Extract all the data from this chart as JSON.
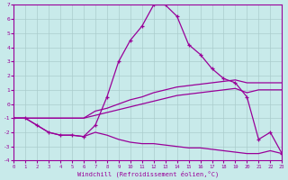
{
  "xlabel": "Windchill (Refroidissement éolien,°C)",
  "xlim": [
    0,
    23
  ],
  "ylim": [
    -4,
    7
  ],
  "xticks": [
    0,
    1,
    2,
    3,
    4,
    5,
    6,
    7,
    8,
    9,
    10,
    11,
    12,
    13,
    14,
    15,
    16,
    17,
    18,
    19,
    20,
    21,
    22,
    23
  ],
  "yticks": [
    -4,
    -3,
    -2,
    -1,
    0,
    1,
    2,
    3,
    4,
    5,
    6,
    7
  ],
  "bg_color": "#c8eaea",
  "line_color": "#990099",
  "grid_color": "#aacccc",
  "line_main_x": [
    0,
    1,
    2,
    3,
    4,
    5,
    6,
    7,
    8,
    9,
    10,
    11,
    12,
    13,
    14,
    15,
    16,
    17,
    18,
    19,
    20,
    21,
    22,
    23
  ],
  "line_main_y": [
    -1,
    -1,
    -1.5,
    -2,
    -2.2,
    -2.2,
    -2.3,
    -1.5,
    0.5,
    3.0,
    4.5,
    5.5,
    7.0,
    7.0,
    6.2,
    4.2,
    3.5,
    2.5,
    1.8,
    1.5,
    0.5,
    -2.5,
    -2.0,
    -3.5
  ],
  "line_upper_x": [
    0,
    1,
    2,
    3,
    4,
    5,
    6,
    7,
    8,
    9,
    10,
    11,
    12,
    13,
    14,
    15,
    16,
    17,
    18,
    19,
    20,
    21,
    22,
    23
  ],
  "line_upper_y": [
    -1,
    -1,
    -1,
    -1,
    -1,
    -1,
    -1,
    -0.5,
    -0.3,
    0.0,
    0.3,
    0.5,
    0.8,
    1.0,
    1.2,
    1.3,
    1.4,
    1.5,
    1.6,
    1.7,
    1.5,
    1.5,
    1.5,
    1.5
  ],
  "line_mid_x": [
    0,
    1,
    2,
    3,
    4,
    5,
    6,
    7,
    8,
    9,
    10,
    11,
    12,
    13,
    14,
    15,
    16,
    17,
    18,
    19,
    20,
    21,
    22,
    23
  ],
  "line_mid_y": [
    -1,
    -1,
    -1,
    -1,
    -1,
    -1,
    -1,
    -0.8,
    -0.6,
    -0.4,
    -0.2,
    0.0,
    0.2,
    0.4,
    0.6,
    0.7,
    0.8,
    0.9,
    1.0,
    1.1,
    0.8,
    1.0,
    1.0,
    1.0
  ],
  "line_lower_x": [
    0,
    1,
    2,
    3,
    4,
    5,
    6,
    7,
    8,
    9,
    10,
    11,
    12,
    13,
    14,
    15,
    16,
    17,
    18,
    19,
    20,
    21,
    22,
    23
  ],
  "line_lower_y": [
    -1,
    -1,
    -1.5,
    -2,
    -2.2,
    -2.2,
    -2.3,
    -2.0,
    -2.2,
    -2.5,
    -2.7,
    -2.8,
    -2.8,
    -2.9,
    -3.0,
    -3.1,
    -3.1,
    -3.2,
    -3.3,
    -3.4,
    -3.5,
    -3.5,
    -3.3,
    -3.5
  ]
}
